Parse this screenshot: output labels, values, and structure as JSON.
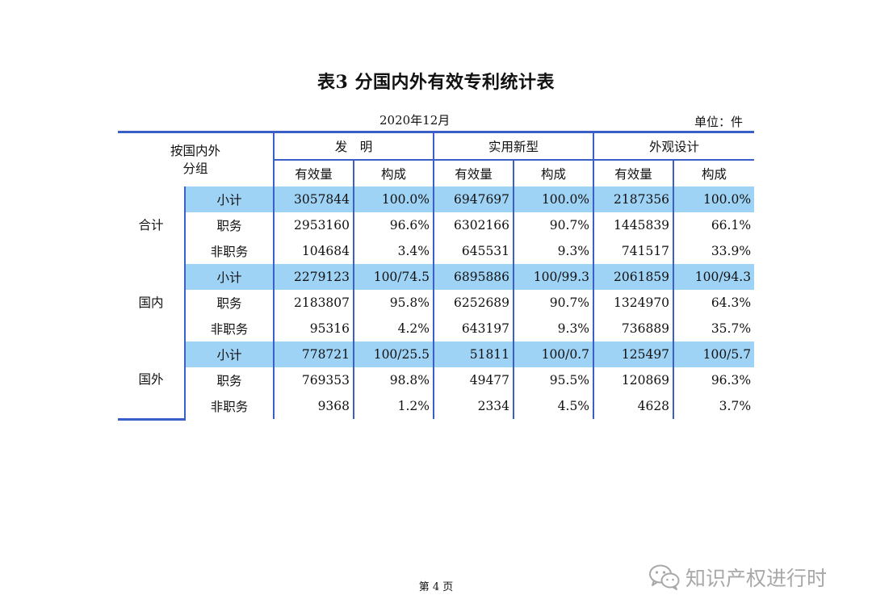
{
  "title": "表3  分国内外有效专利统计表",
  "date": "2020年12月",
  "unit": "单位：件",
  "header": {
    "group_label_line1": "按国内外",
    "group_label_line2": "分组",
    "categories": [
      "发　明",
      "实用新型",
      "外观设计"
    ],
    "sub_cols": [
      "有效量",
      "构成",
      "有效量",
      "构成",
      "有效量",
      "构成"
    ]
  },
  "groups": [
    {
      "name": "合计",
      "rows": [
        {
          "label": "小计",
          "values": [
            "3057844",
            "100.0%",
            "6947697",
            "100.0%",
            "2187356",
            "100.0%"
          ]
        },
        {
          "label": "职务",
          "values": [
            "2953160",
            "96.6%",
            "6302166",
            "90.7%",
            "1445839",
            "66.1%"
          ]
        },
        {
          "label": "非职务",
          "values": [
            "104684",
            "3.4%",
            "645531",
            "9.3%",
            "741517",
            "33.9%"
          ]
        }
      ]
    },
    {
      "name": "国内",
      "rows": [
        {
          "label": "小计",
          "values": [
            "2279123",
            "100/74.5",
            "6895886",
            "100/99.3",
            "2061859",
            "100/94.3"
          ]
        },
        {
          "label": "职务",
          "values": [
            "2183807",
            "95.8%",
            "6252689",
            "90.7%",
            "1324970",
            "64.3%"
          ]
        },
        {
          "label": "非职务",
          "values": [
            "95316",
            "4.2%",
            "643197",
            "9.3%",
            "736889",
            "35.7%"
          ]
        }
      ]
    },
    {
      "name": "国外",
      "rows": [
        {
          "label": "小计",
          "values": [
            "778721",
            "100/25.5",
            "51811",
            "100/0.7",
            "125497",
            "100/5.7"
          ]
        },
        {
          "label": "职务",
          "values": [
            "769353",
            "98.8%",
            "49477",
            "95.5%",
            "120869",
            "96.3%"
          ]
        },
        {
          "label": "非职务",
          "values": [
            "9368",
            "1.2%",
            "2334",
            "4.5%",
            "4628",
            "3.7%"
          ]
        }
      ]
    }
  ],
  "footer": "第 4 页",
  "watermark": "知识产权进行时",
  "colors": {
    "rule": "#3a5fc8",
    "highlight": "#9fd3f5"
  },
  "icons": {
    "watermark": "wechat-icon"
  }
}
